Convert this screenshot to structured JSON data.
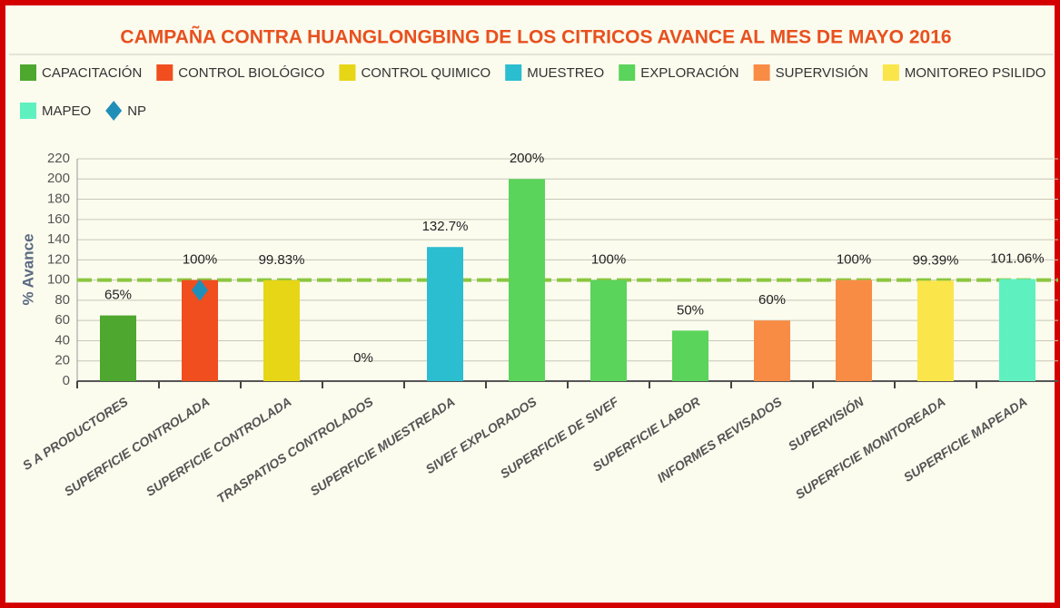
{
  "chart_data": {
    "type": "bar",
    "title": "CAMPAÑA CONTRA HUANGLONGBING DE LOS CITRICOS AVANCE AL MES DE MAYO 2016",
    "y_label": "% Avance",
    "categories": [
      "S A PRODUCTORES",
      "SUPERFICIE CONTROLADA",
      "SUPERFICIE CONTROLADA",
      "TRASPATIOS CONTROLADOS",
      "SUPERFICIE MUESTREADA",
      "SIVEF EXPLORADOS",
      "SUPERFICIE DE SIVEF",
      "SUPERFICIE LABOR",
      "INFORMES REVISADOS",
      "SUPERVISIÓN",
      "SUPERFICIE MONITOREADA",
      "SUPERFICIE MAPEADA"
    ],
    "series": [
      {
        "name": "CAPACITACIÓN",
        "color": "#4ea72e",
        "values": [
          65,
          null,
          null,
          null,
          null,
          null,
          null,
          null,
          null,
          null,
          null,
          null
        ],
        "value_labels": [
          "65%",
          null,
          null,
          null,
          null,
          null,
          null,
          null,
          null,
          null,
          null,
          null
        ]
      },
      {
        "name": "CONTROL BIOLÓGICO",
        "color": "#f04e1e",
        "values": [
          null,
          100,
          null,
          null,
          null,
          null,
          null,
          null,
          null,
          null,
          null,
          null
        ],
        "value_labels": [
          null,
          "100%",
          null,
          null,
          null,
          null,
          null,
          null,
          null,
          null,
          null,
          null
        ]
      },
      {
        "name": "CONTROL QUIMICO",
        "color": "#e6d616",
        "values": [
          null,
          null,
          99.83,
          0,
          null,
          null,
          null,
          null,
          null,
          null,
          null,
          null
        ],
        "value_labels": [
          null,
          null,
          "99.83%",
          "0%",
          null,
          null,
          null,
          null,
          null,
          null,
          null,
          null
        ]
      },
      {
        "name": "MUESTREO",
        "color": "#2bbdd0",
        "values": [
          null,
          null,
          null,
          null,
          132.7,
          null,
          null,
          null,
          null,
          null,
          null,
          null
        ],
        "value_labels": [
          null,
          null,
          null,
          null,
          "132.7%",
          null,
          null,
          null,
          null,
          null,
          null,
          null
        ]
      },
      {
        "name": "EXPLORACIÓN",
        "color": "#5ad45a",
        "values": [
          null,
          null,
          null,
          null,
          null,
          200,
          100,
          50,
          null,
          null,
          null,
          null
        ],
        "value_labels": [
          null,
          null,
          null,
          null,
          null,
          "200%",
          "100%",
          "50%",
          null,
          null,
          null,
          null
        ]
      },
      {
        "name": "SUPERVISIÓN",
        "color": "#f98c45",
        "values": [
          null,
          null,
          null,
          null,
          null,
          null,
          null,
          null,
          60,
          100,
          null,
          null
        ],
        "value_labels": [
          null,
          null,
          null,
          null,
          null,
          null,
          null,
          null,
          "60%",
          "100%",
          null,
          null
        ]
      },
      {
        "name": "MONITOREO PSILIDO",
        "color": "#fae64a",
        "values": [
          null,
          null,
          null,
          null,
          null,
          null,
          null,
          null,
          null,
          null,
          99.39,
          null
        ],
        "value_labels": [
          null,
          null,
          null,
          null,
          null,
          null,
          null,
          null,
          null,
          null,
          "99.39%",
          null
        ]
      },
      {
        "name": "MAPEO",
        "color": "#5ff0c0",
        "values": [
          null,
          null,
          null,
          null,
          null,
          null,
          null,
          null,
          null,
          null,
          null,
          101.06
        ],
        "value_labels": [
          null,
          null,
          null,
          null,
          null,
          null,
          null,
          null,
          null,
          null,
          null,
          "101.06%"
        ]
      },
      {
        "name": "NP",
        "color": "#1f8fb8",
        "marker": "diamond",
        "values": [
          null,
          90,
          null,
          null,
          null,
          null,
          null,
          null,
          null,
          null,
          null,
          null
        ]
      }
    ],
    "target": 100,
    "target_color": "#8cc63f",
    "ylim": [
      0,
      220
    ],
    "yticks": [
      0,
      20,
      40,
      60,
      80,
      100,
      120,
      140,
      160,
      180,
      200,
      220
    ],
    "grid": true
  }
}
